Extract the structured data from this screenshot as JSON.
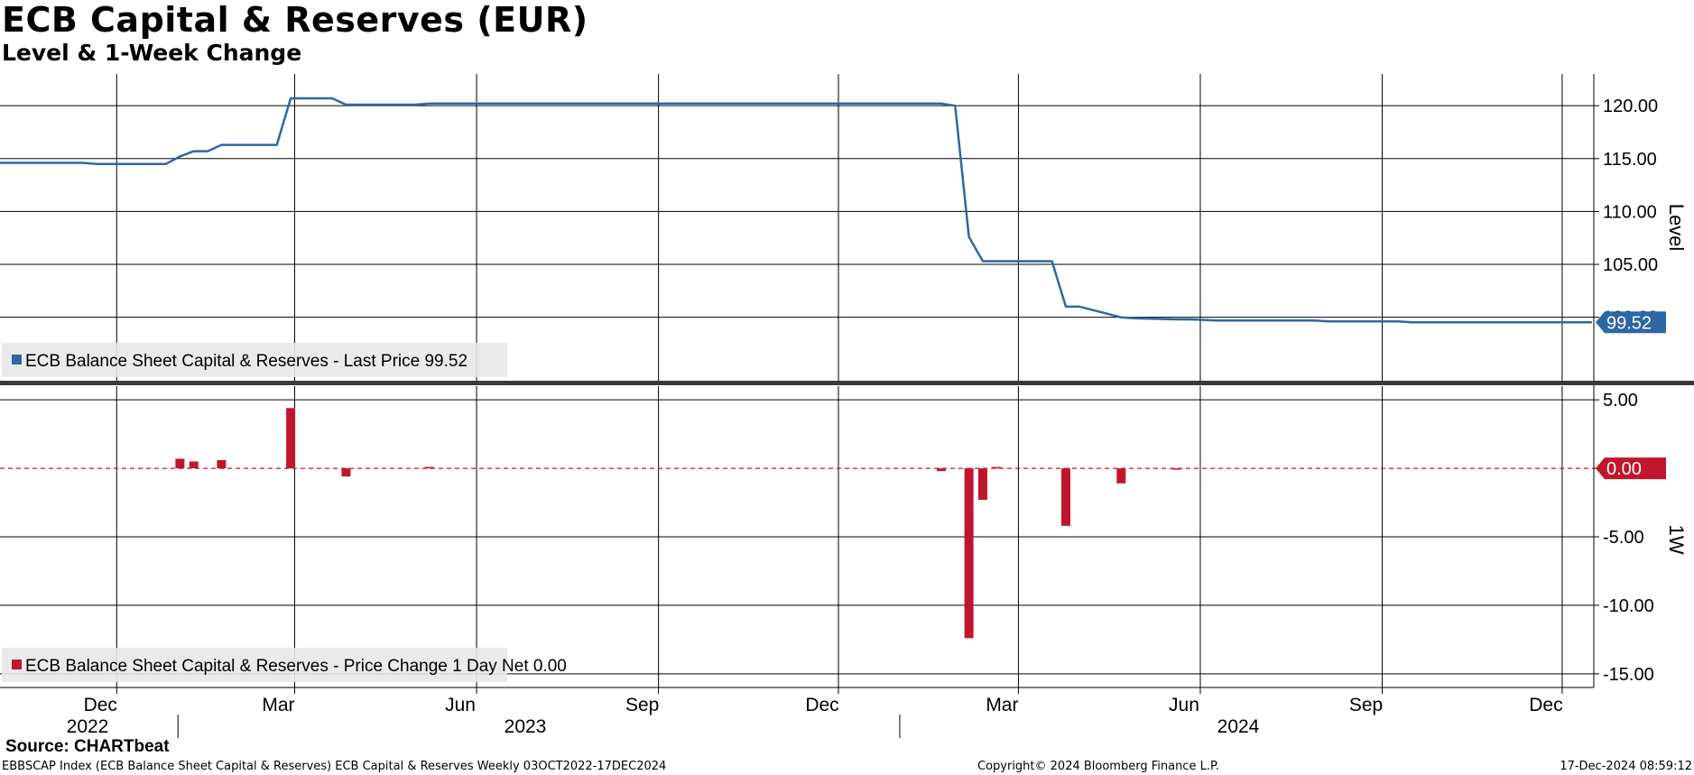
{
  "header": {
    "title": "ECB Capital & Reserves (EUR)",
    "subtitle": "Level & 1-Week Change"
  },
  "footer": {
    "source": "Source: CHARTbeat",
    "left": "EBBSCAP Index (ECB Balance Sheet Capital & Reserves) ECB Capital & Reserves  Weekly 03OCT2022-17DEC2024",
    "center": "Copyright© 2024 Bloomberg Finance L.P.",
    "right": "17-Dec-2024 08:59:12"
  },
  "colors": {
    "level_line": "#2e67a6",
    "change_bar": "#c0162c",
    "grid": "#000000"
  },
  "chart_data": [
    {
      "type": "line",
      "ylabel": "Level",
      "ylim": [
        94.0,
        123.0
      ],
      "yticks": [
        "120.00",
        "115.00",
        "110.00",
        "105.00",
        "100.00"
      ],
      "legend": "ECB Balance Sheet Capital & Reserves - Last Price 99.52",
      "last_value_label": "99.52",
      "legend_placement": "bottom-left",
      "grid": true,
      "series": [
        {
          "name": "ECB Balance Sheet Capital & Reserves",
          "x": [
            "2022-10-03",
            "2022-11-14",
            "2022-11-21",
            "2022-12-26",
            "2023-01-02",
            "2023-01-09",
            "2023-01-16",
            "2023-01-23",
            "2023-01-30",
            "2023-02-20",
            "2023-02-27",
            "2023-03-06",
            "2023-03-13",
            "2023-03-20",
            "2023-03-27",
            "2023-05-01",
            "2023-05-08",
            "2024-01-22",
            "2024-01-29",
            "2024-02-05",
            "2024-02-12",
            "2024-02-19",
            "2024-02-26",
            "2024-03-18",
            "2024-03-25",
            "2024-04-01",
            "2024-04-22",
            "2024-04-29",
            "2024-05-20",
            "2024-05-27",
            "2024-06-10",
            "2024-06-17",
            "2024-07-29",
            "2024-08-05",
            "2024-09-09",
            "2024-09-16",
            "2024-12-16"
          ],
          "y": [
            114.6,
            114.6,
            114.5,
            114.5,
            115.2,
            115.7,
            115.7,
            116.3,
            116.3,
            116.3,
            120.7,
            120.7,
            120.7,
            120.7,
            120.1,
            120.1,
            120.2,
            120.2,
            120.0,
            107.6,
            105.3,
            105.3,
            105.3,
            105.3,
            101.0,
            101.0,
            100.0,
            99.9,
            99.8,
            99.8,
            99.7,
            99.7,
            99.7,
            99.6,
            99.6,
            99.52,
            99.52
          ]
        }
      ]
    },
    {
      "type": "bar",
      "ylabel": "1W",
      "ylim": [
        -16.0,
        6.0
      ],
      "yticks": [
        "5.00",
        "0.00",
        "-5.00",
        "-10.00",
        "-15.00"
      ],
      "legend": "ECB Balance Sheet Capital & Reserves - Price Change 1 Day Net 0.00",
      "last_value_label": "0.00",
      "legend_placement": "bottom-left",
      "grid": true,
      "series": [
        {
          "name": "ECB Balance Sheet Capital & Reserves",
          "x": [
            "2023-01-02",
            "2023-01-09",
            "2023-01-23",
            "2023-02-27",
            "2023-03-27",
            "2023-05-08",
            "2024-01-22",
            "2024-02-05",
            "2024-02-12",
            "2024-02-19",
            "2024-03-25",
            "2024-04-22",
            "2024-05-20"
          ],
          "values": [
            0.7,
            0.5,
            0.6,
            4.4,
            -0.6,
            0.1,
            -0.2,
            -12.4,
            -2.3,
            0.1,
            -4.2,
            -1.1,
            -0.1
          ]
        }
      ]
    }
  ],
  "x_axis": {
    "start": "2022-10-03",
    "end": "2024-12-17",
    "month_ticks": [
      {
        "date": "2022-12-01",
        "label": "Dec"
      },
      {
        "date": "2023-03-01",
        "label": "Mar"
      },
      {
        "date": "2023-06-01",
        "label": "Jun"
      },
      {
        "date": "2023-09-01",
        "label": "Sep"
      },
      {
        "date": "2023-12-01",
        "label": "Dec"
      },
      {
        "date": "2024-03-01",
        "label": "Mar"
      },
      {
        "date": "2024-06-01",
        "label": "Jun"
      },
      {
        "date": "2024-09-01",
        "label": "Sep"
      },
      {
        "date": "2024-12-01",
        "label": "Dec"
      }
    ],
    "year_labels": [
      "2022",
      "2023",
      "2024"
    ],
    "year_boundaries": [
      "2023-01-01",
      "2024-01-01"
    ]
  }
}
